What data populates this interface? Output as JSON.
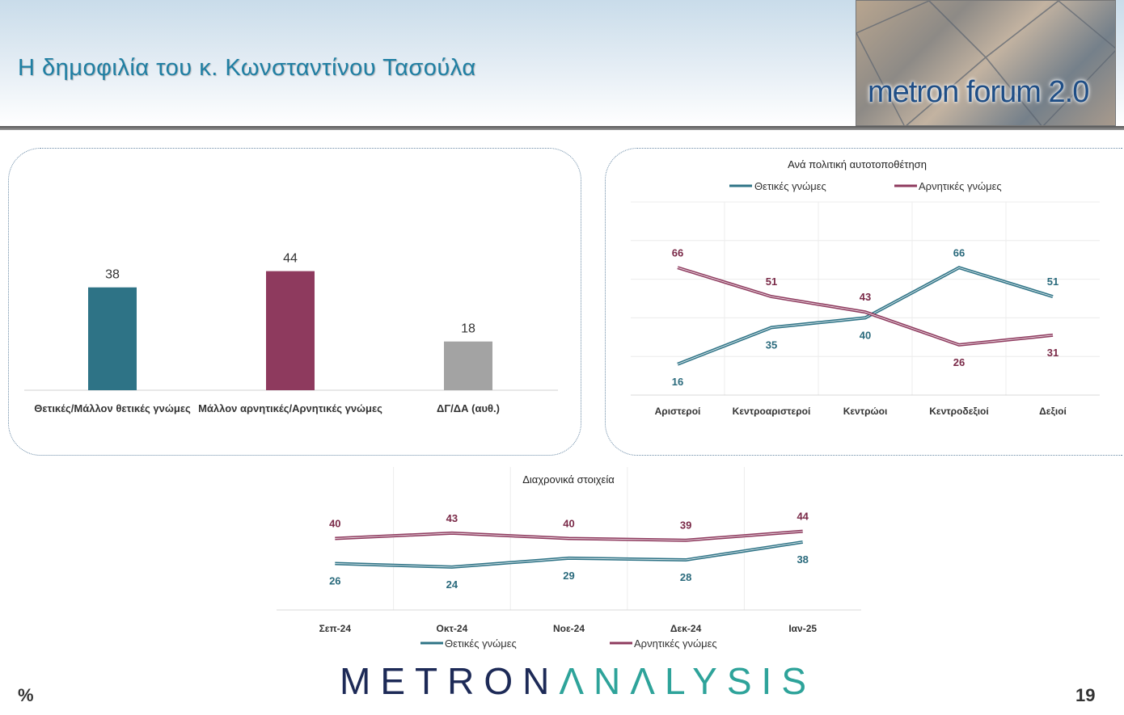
{
  "header": {
    "title": "Η δημοφιλία του κ. Κωνσταντίνου Τασούλα",
    "logo_text": "metron forum 2.0"
  },
  "colors": {
    "positive": "#2e7386",
    "negative": "#8e3a5e",
    "unknown": "#a3a3a3",
    "positive_label": "#2a6a7c",
    "negative_label": "#7a2a48"
  },
  "chart_data": [
    {
      "type": "bar",
      "categories": [
        "Θετικές/Μάλλον θετικές γνώμες",
        "Μάλλον αρνητικές/Αρνητικές γνώμες",
        "ΔΓ/ΔΑ (αυθ.)"
      ],
      "values": [
        38,
        44,
        18
      ],
      "ylim": [
        0,
        50
      ],
      "grid": false
    },
    {
      "type": "line",
      "title": "Ανά πολιτική αυτοτοποθέτηση",
      "categories": [
        "Αριστεροί",
        "Κεντροαριστεροί",
        "Κεντρώοι",
        "Κεντροδεξιοί",
        "Δεξιοί"
      ],
      "series": [
        {
          "name": "Θετικές γνώμες",
          "values": [
            16,
            35,
            40,
            66,
            51
          ]
        },
        {
          "name": "Αρνητικές γνώμες",
          "values": [
            66,
            51,
            43,
            26,
            31
          ]
        }
      ],
      "ylim": [
        0,
        100
      ],
      "grid": true,
      "legend": "top"
    },
    {
      "type": "line",
      "title": "Διαχρονικά στοιχεία",
      "categories": [
        "Σεπ-24",
        "Οκτ-24",
        "Νοε-24",
        "Δεκ-24",
        "Ιαν-25"
      ],
      "series": [
        {
          "name": "Θετικές γνώμες",
          "values": [
            26,
            24,
            29,
            28,
            38
          ]
        },
        {
          "name": "Αρνητικές γνώμες",
          "values": [
            40,
            43,
            40,
            39,
            44
          ]
        }
      ],
      "ylim": [
        0,
        80
      ],
      "grid": true,
      "legend": "bottom"
    }
  ],
  "footer": {
    "brand_a": "METRON",
    "brand_b": "ΛNΛLYSIS",
    "unit": "%",
    "page": "19"
  }
}
